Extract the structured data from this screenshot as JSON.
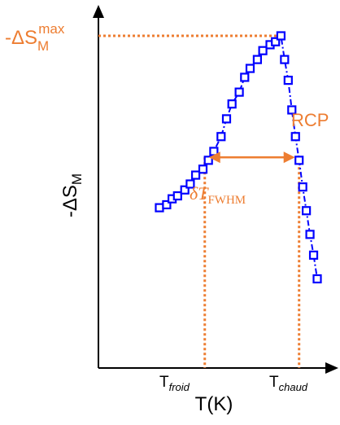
{
  "chart_data": {
    "type": "scatter",
    "xlabel": "T(K)",
    "ylabel": "-ΔS",
    "ylabel_sub": "M",
    "xlim": [
      0,
      100
    ],
    "ylim": [
      0,
      100
    ],
    "grid": false,
    "series": [
      {
        "marker": "square",
        "line": "dash-dot",
        "color": "#0000ff",
        "points": [
          [
            13,
            42
          ],
          [
            17,
            43
          ],
          [
            20,
            45
          ],
          [
            23,
            46
          ],
          [
            27,
            48
          ],
          [
            30,
            50
          ],
          [
            33,
            53
          ],
          [
            37,
            55
          ],
          [
            40,
            58
          ],
          [
            43,
            61
          ],
          [
            47,
            66
          ],
          [
            50,
            72
          ],
          [
            53,
            77
          ],
          [
            57,
            81
          ],
          [
            60,
            86
          ],
          [
            63,
            89
          ],
          [
            67,
            92
          ],
          [
            70,
            95
          ],
          [
            74,
            97
          ],
          [
            77,
            98
          ],
          [
            80,
            100
          ],
          [
            82,
            92
          ],
          [
            84,
            85
          ],
          [
            86,
            75
          ],
          [
            88,
            66
          ],
          [
            90,
            58
          ],
          [
            92,
            49
          ],
          [
            94,
            41
          ],
          [
            96,
            33
          ],
          [
            98,
            26
          ],
          [
            100,
            18
          ]
        ]
      }
    ],
    "peak": {
      "x": 80,
      "y": 100,
      "label": "-ΔS",
      "label_sub": "M",
      "label_sup": "max"
    },
    "fwhm": {
      "x_cold": 38,
      "x_hot": 90,
      "y": 59,
      "label": "δT",
      "label_sub": "FWHM"
    },
    "x_markers": [
      {
        "x": 38,
        "label": "T",
        "label_sub": "froid"
      },
      {
        "x": 90,
        "label": "T",
        "label_sub": "chaud"
      }
    ],
    "annotation": "RCP",
    "colors": {
      "data": "#0000ff",
      "annotation": "#ed7d31",
      "axis": "#000000"
    }
  }
}
